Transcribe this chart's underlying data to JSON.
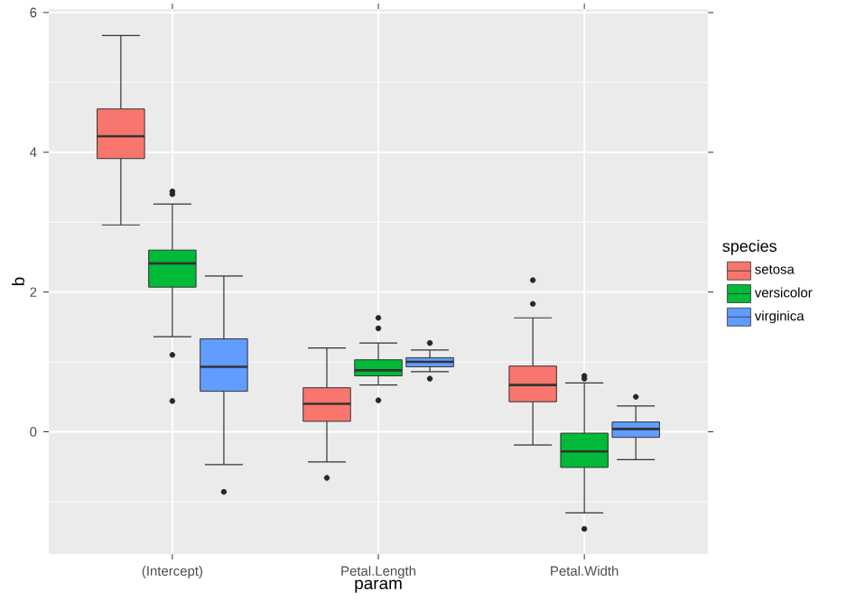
{
  "chart_data": {
    "type": "box",
    "xlabel": "param",
    "ylabel": "b",
    "legend_title": "species",
    "categories": [
      "(Intercept)",
      "Petal.Length",
      "Petal.Width"
    ],
    "ylim": [
      -1.75,
      6.05
    ],
    "yticks": [
      0,
      2,
      4,
      6
    ],
    "grid": true,
    "legend": "right",
    "series": [
      {
        "name": "setosa",
        "color": "#f8766d",
        "boxes": [
          {
            "low": 2.96,
            "q1": 3.91,
            "median": 4.23,
            "q3": 4.62,
            "high": 5.67
          },
          {
            "low": -0.43,
            "q1": 0.15,
            "median": 0.4,
            "q3": 0.63,
            "high": 1.2,
            "outliers": [
              -0.66
            ]
          },
          {
            "low": -0.19,
            "q1": 0.43,
            "median": 0.67,
            "q3": 0.94,
            "high": 1.63,
            "outliers": [
              2.17,
              1.83
            ]
          }
        ]
      },
      {
        "name": "versicolor",
        "color": "#00ba38",
        "boxes": [
          {
            "low": 1.36,
            "q1": 2.07,
            "median": 2.41,
            "q3": 2.6,
            "high": 3.26,
            "outliers": [
              3.44,
              3.4,
              1.1,
              0.44
            ]
          },
          {
            "low": 0.67,
            "q1": 0.8,
            "median": 0.88,
            "q3": 1.03,
            "high": 1.27,
            "outliers": [
              1.63,
              1.48,
              0.45
            ]
          },
          {
            "low": -1.16,
            "q1": -0.51,
            "median": -0.28,
            "q3": -0.02,
            "high": 0.7,
            "outliers": [
              0.8,
              0.76,
              -1.39
            ]
          }
        ]
      },
      {
        "name": "virginica",
        "color": "#619cff",
        "boxes": [
          {
            "low": -0.47,
            "q1": 0.58,
            "median": 0.93,
            "q3": 1.33,
            "high": 2.23,
            "outliers": [
              -0.86
            ]
          },
          {
            "low": 0.86,
            "q1": 0.93,
            "median": 1.0,
            "q3": 1.06,
            "high": 1.17,
            "outliers": [
              1.27,
              0.76
            ]
          },
          {
            "low": -0.4,
            "q1": -0.08,
            "median": 0.04,
            "q3": 0.14,
            "high": 0.37,
            "outliers": [
              0.5
            ]
          }
        ]
      }
    ]
  }
}
